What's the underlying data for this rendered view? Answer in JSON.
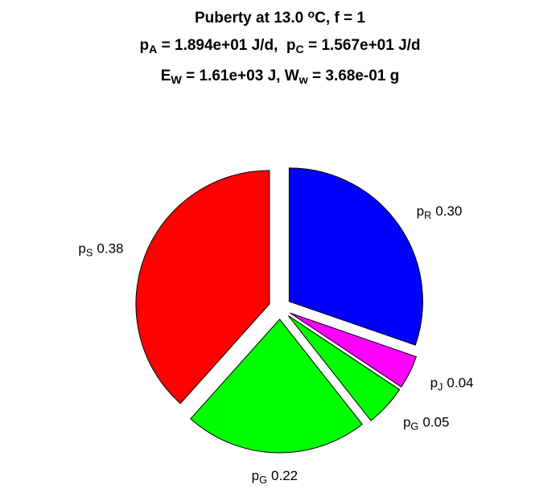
{
  "chart_data": {
    "type": "pie",
    "title": [
      [
        "Puberty at 13.0 ",
        {
          "sup": "o"
        },
        "C, f = 1"
      ],
      [
        "p",
        {
          "sub": "A"
        },
        " = 1.894e+01 J/d,  p",
        {
          "sub": "C"
        },
        " = 1.567e+01 J/d"
      ],
      [
        "E",
        {
          "sub": "W"
        },
        " = 1.61e+03 J, W",
        {
          "sub": "w"
        },
        " = 3.68e-01 g"
      ]
    ],
    "categories": [
      [
        "p",
        {
          "sub": "R"
        }
      ],
      [
        "p",
        {
          "sub": "J"
        }
      ],
      [
        "p",
        {
          "sub": "G"
        }
      ],
      [
        "p",
        {
          "sub": "G"
        }
      ],
      [
        "p",
        {
          "sub": "S"
        }
      ]
    ],
    "values": [
      0.3,
      0.04,
      0.05,
      0.22,
      0.38
    ],
    "value_labels": [
      "0.30",
      "0.04",
      "0.05",
      "0.22",
      "0.38"
    ],
    "colors": [
      "#0000ff",
      "#ff00ff",
      "#00ff00",
      "#00ff00",
      "#ff0000"
    ],
    "explode": true,
    "direction": "clockwise"
  }
}
